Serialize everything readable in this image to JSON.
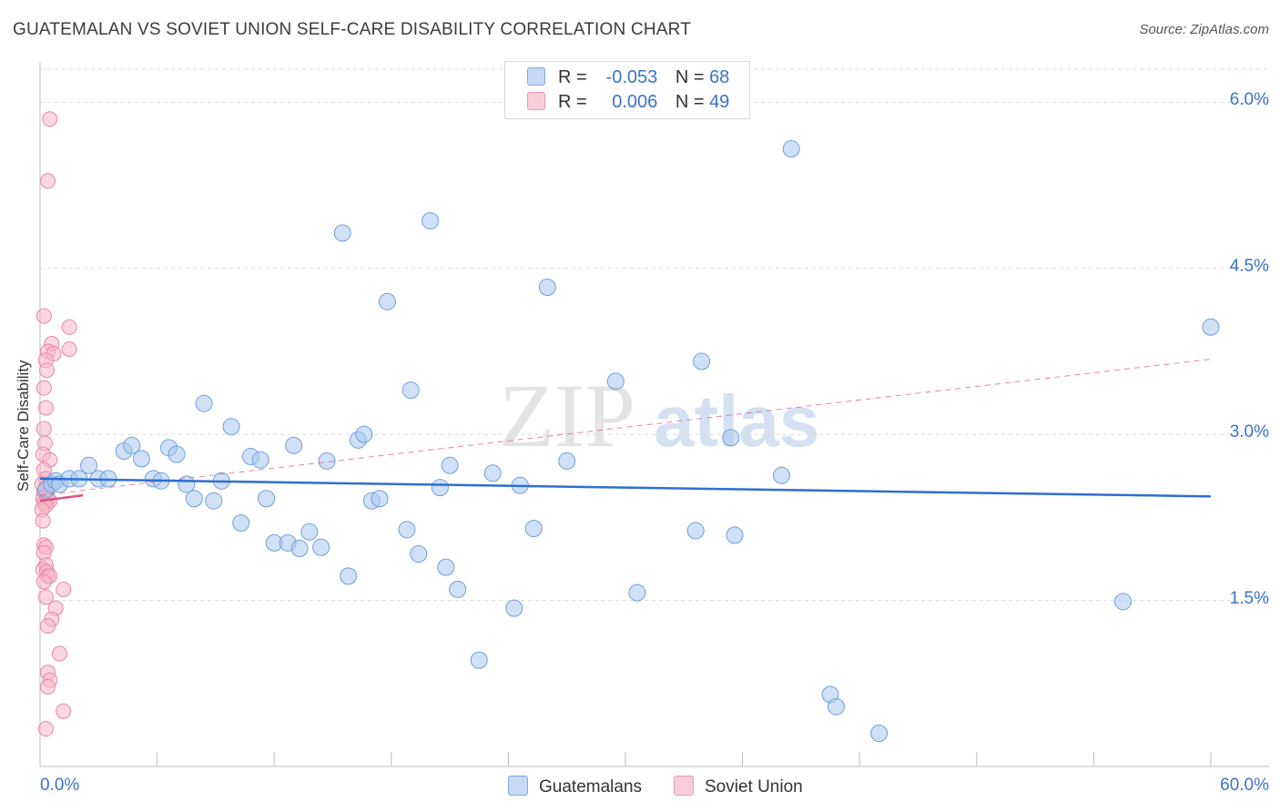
{
  "title": "GUATEMALAN VS SOVIET UNION SELF-CARE DISABILITY CORRELATION CHART",
  "source": "Source: ZipAtlas.com",
  "watermark": {
    "zip": "ZIP",
    "atlas": "atlas"
  },
  "legend": {
    "rows": [
      {
        "r_label": "R =",
        "r_value": "-0.053",
        "n_label": "N =",
        "n_value": "68"
      },
      {
        "r_label": "R =",
        "r_value": "0.006",
        "n_label": "N =",
        "n_value": "49"
      }
    ]
  },
  "bottom_legend": [
    "Guatemalans",
    "Soviet Union"
  ],
  "colors": {
    "blue_fill": "#a9c8ef",
    "blue_stroke": "#6f9fdc",
    "blue_line": "#2e6fd0",
    "pink_fill": "#f5b6c8",
    "pink_stroke": "#e989a6",
    "pink_line": "#e0507e",
    "grid": "#dcdcdc",
    "axis_text": "#3a73c8"
  },
  "chart_data": {
    "type": "scatter",
    "title": "GUATEMALAN VS SOVIET UNION SELF-CARE DISABILITY CORRELATION CHART",
    "xlabel": "",
    "ylabel": "Self-Care Disability",
    "xlim": [
      0,
      60
    ],
    "ylim": [
      0,
      6.3
    ],
    "x_tick_labels": [
      "0.0%",
      "60.0%"
    ],
    "y_ticks": [
      1.5,
      3.0,
      4.5,
      6.0
    ],
    "y_tick_labels": [
      "1.5%",
      "3.0%",
      "4.5%",
      "6.0%"
    ],
    "series": [
      {
        "name": "Guatemalans",
        "r": -0.053,
        "n": 68,
        "trend": {
          "x": [
            0,
            60
          ],
          "y": [
            2.6,
            2.44
          ]
        },
        "points": [
          [
            0.3,
            2.5
          ],
          [
            0.6,
            2.55
          ],
          [
            0.8,
            2.58
          ],
          [
            1.0,
            2.55
          ],
          [
            1.5,
            2.6
          ],
          [
            2.0,
            2.6
          ],
          [
            2.5,
            2.72
          ],
          [
            3.0,
            2.6
          ],
          [
            3.5,
            2.6
          ],
          [
            4.3,
            2.85
          ],
          [
            4.7,
            2.9
          ],
          [
            5.2,
            2.78
          ],
          [
            5.8,
            2.6
          ],
          [
            6.2,
            2.58
          ],
          [
            6.6,
            2.88
          ],
          [
            7.0,
            2.82
          ],
          [
            7.5,
            2.55
          ],
          [
            7.9,
            2.42
          ],
          [
            8.4,
            3.28
          ],
          [
            8.9,
            2.4
          ],
          [
            9.3,
            2.58
          ],
          [
            9.8,
            3.07
          ],
          [
            10.3,
            2.2
          ],
          [
            10.8,
            2.8
          ],
          [
            11.3,
            2.77
          ],
          [
            11.6,
            2.42
          ],
          [
            12.0,
            2.02
          ],
          [
            12.7,
            2.02
          ],
          [
            13.0,
            2.9
          ],
          [
            13.3,
            1.97
          ],
          [
            13.8,
            2.12
          ],
          [
            14.4,
            1.98
          ],
          [
            14.7,
            2.76
          ],
          [
            15.5,
            4.82
          ],
          [
            15.8,
            1.72
          ],
          [
            16.3,
            2.95
          ],
          [
            16.6,
            3.0
          ],
          [
            17.0,
            2.4
          ],
          [
            17.4,
            2.42
          ],
          [
            17.8,
            4.2
          ],
          [
            18.8,
            2.14
          ],
          [
            19.0,
            3.4
          ],
          [
            19.4,
            1.92
          ],
          [
            20.0,
            4.93
          ],
          [
            20.5,
            2.52
          ],
          [
            20.8,
            1.8
          ],
          [
            21.0,
            2.72
          ],
          [
            21.4,
            1.6
          ],
          [
            22.5,
            0.96
          ],
          [
            23.2,
            2.65
          ],
          [
            24.3,
            1.43
          ],
          [
            24.6,
            2.54
          ],
          [
            25.3,
            2.15
          ],
          [
            26.0,
            4.33
          ],
          [
            27.0,
            2.76
          ],
          [
            29.5,
            3.48
          ],
          [
            30.6,
            1.57
          ],
          [
            33.6,
            2.13
          ],
          [
            33.9,
            3.66
          ],
          [
            35.4,
            2.97
          ],
          [
            35.6,
            2.09
          ],
          [
            38.0,
            2.63
          ],
          [
            38.5,
            5.58
          ],
          [
            40.5,
            0.65
          ],
          [
            40.8,
            0.54
          ],
          [
            43.0,
            0.3
          ],
          [
            55.5,
            1.49
          ],
          [
            60.0,
            3.97
          ]
        ]
      },
      {
        "name": "Soviet Union",
        "r": 0.006,
        "n": 49,
        "trend": {
          "x": [
            0,
            2.2
          ],
          "y": [
            2.4,
            2.45
          ]
        },
        "trend_dashed": {
          "x": [
            0,
            60
          ],
          "y": [
            2.45,
            3.68
          ]
        },
        "points": [
          [
            0.5,
            5.85
          ],
          [
            0.4,
            5.29
          ],
          [
            0.2,
            4.07
          ],
          [
            1.5,
            3.97
          ],
          [
            0.6,
            3.82
          ],
          [
            0.4,
            3.75
          ],
          [
            0.7,
            3.73
          ],
          [
            1.5,
            3.77
          ],
          [
            0.3,
            3.67
          ],
          [
            0.35,
            3.58
          ],
          [
            0.2,
            3.42
          ],
          [
            0.3,
            3.24
          ],
          [
            0.2,
            3.05
          ],
          [
            0.25,
            2.92
          ],
          [
            0.15,
            2.82
          ],
          [
            0.5,
            2.77
          ],
          [
            0.2,
            2.68
          ],
          [
            0.3,
            2.6
          ],
          [
            0.1,
            2.55
          ],
          [
            0.3,
            2.52
          ],
          [
            0.2,
            2.48
          ],
          [
            0.3,
            2.45
          ],
          [
            0.15,
            2.42
          ],
          [
            0.4,
            2.42
          ],
          [
            0.5,
            2.4
          ],
          [
            0.2,
            2.38
          ],
          [
            0.3,
            2.36
          ],
          [
            0.1,
            2.32
          ],
          [
            0.15,
            2.22
          ],
          [
            0.2,
            2.0
          ],
          [
            0.3,
            1.98
          ],
          [
            0.2,
            1.93
          ],
          [
            0.3,
            1.82
          ],
          [
            0.15,
            1.78
          ],
          [
            0.35,
            1.76
          ],
          [
            0.4,
            1.72
          ],
          [
            0.5,
            1.72
          ],
          [
            0.2,
            1.67
          ],
          [
            1.2,
            1.6
          ],
          [
            0.3,
            1.53
          ],
          [
            0.8,
            1.43
          ],
          [
            0.6,
            1.33
          ],
          [
            0.4,
            1.27
          ],
          [
            1.0,
            1.02
          ],
          [
            0.4,
            0.85
          ],
          [
            0.5,
            0.78
          ],
          [
            0.4,
            0.72
          ],
          [
            1.2,
            0.5
          ],
          [
            0.3,
            0.34
          ]
        ]
      }
    ]
  }
}
